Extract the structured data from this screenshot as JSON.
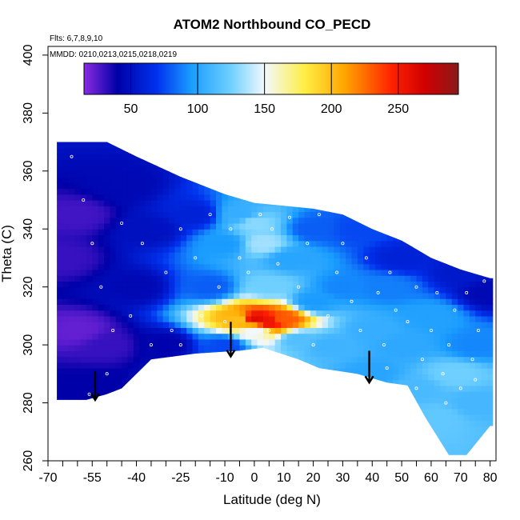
{
  "chart_data": {
    "type": "heatmap",
    "title": "ATOM2 Northbound CO_PECD",
    "flights_note": "Flts: 6,7,8,9,10",
    "dates_note": "MMDD: 0210,0213,0215,0218,0219",
    "xlabel": "Latitude (deg N)",
    "ylabel": "Theta (C)",
    "xlim": [
      -70,
      82
    ],
    "ylim": [
      260,
      403
    ],
    "x_ticks": [
      -70,
      -55,
      -40,
      -25,
      -10,
      0,
      10,
      20,
      30,
      40,
      50,
      60,
      70,
      80
    ],
    "x_tick_labels": [
      "-70",
      "-55",
      "-40",
      "-25",
      "-10",
      "0",
      "10",
      "20",
      "30",
      "40",
      "50",
      "60",
      "70",
      "80"
    ],
    "x_minor_ticks": [
      -65,
      -60,
      -50,
      -45,
      -35,
      -30,
      -20,
      -15,
      -5,
      5,
      15,
      25,
      35,
      45,
      55,
      65,
      75
    ],
    "y_ticks": [
      260,
      280,
      300,
      320,
      340,
      360,
      380,
      400
    ],
    "y_tick_labels": [
      "260",
      "280",
      "300",
      "320",
      "340",
      "360",
      "380",
      "400"
    ],
    "colorbar": {
      "range": [
        15,
        295
      ],
      "ticks": [
        50,
        100,
        150,
        200,
        250
      ],
      "tick_labels": [
        "50",
        "100",
        "150",
        "200",
        "250"
      ],
      "stops": [
        {
          "v": 15,
          "color": "#8a2be2"
        },
        {
          "v": 40,
          "color": "#0000a8"
        },
        {
          "v": 70,
          "color": "#0033ee"
        },
        {
          "v": 95,
          "color": "#1a9cff"
        },
        {
          "v": 125,
          "color": "#6fd0ff"
        },
        {
          "v": 150,
          "color": "#f2f8ff"
        },
        {
          "v": 180,
          "color": "#ffee44"
        },
        {
          "v": 210,
          "color": "#ffa500"
        },
        {
          "v": 245,
          "color": "#ff2200"
        },
        {
          "v": 270,
          "color": "#d00000"
        },
        {
          "v": 295,
          "color": "#8a1a1a"
        }
      ]
    },
    "domain_boundary": {
      "top": [
        [
          -57,
          370
        ],
        [
          -50,
          370
        ],
        [
          -40,
          365
        ],
        [
          -25,
          358
        ],
        [
          -10,
          352
        ],
        [
          0,
          349
        ],
        [
          10,
          348
        ],
        [
          20,
          347
        ],
        [
          30,
          345
        ],
        [
          40,
          340
        ],
        [
          50,
          336
        ],
        [
          60,
          330
        ],
        [
          70,
          326
        ],
        [
          80,
          323
        ]
      ],
      "bottom": [
        [
          -57,
          281
        ],
        [
          -50,
          283
        ],
        [
          -45,
          285
        ],
        [
          -35,
          295
        ],
        [
          -20,
          297
        ],
        [
          -5,
          298
        ],
        [
          3,
          299
        ],
        [
          15,
          295
        ],
        [
          22,
          292
        ],
        [
          35,
          290
        ],
        [
          45,
          287
        ],
        [
          52,
          286
        ],
        [
          58,
          275
        ],
        [
          66,
          262
        ],
        [
          72,
          262
        ],
        [
          80,
          272
        ]
      ],
      "left_x": -67,
      "right_x": 81
    },
    "field_description": "CO concentration (ppbv) interpolated over latitude and potential temperature",
    "field_points": [
      {
        "lat": -65,
        "theta": 330,
        "co": 30
      },
      {
        "lat": -60,
        "theta": 345,
        "co": 28
      },
      {
        "lat": -60,
        "theta": 305,
        "co": 22
      },
      {
        "lat": -50,
        "theta": 300,
        "co": 30
      },
      {
        "lat": -55,
        "theta": 285,
        "co": 40
      },
      {
        "lat": -45,
        "theta": 355,
        "co": 45
      },
      {
        "lat": -35,
        "theta": 340,
        "co": 50
      },
      {
        "lat": -40,
        "theta": 320,
        "co": 45
      },
      {
        "lat": -30,
        "theta": 300,
        "co": 42
      },
      {
        "lat": -20,
        "theta": 345,
        "co": 60
      },
      {
        "lat": -15,
        "theta": 320,
        "co": 80
      },
      {
        "lat": -10,
        "theta": 335,
        "co": 95
      },
      {
        "lat": -5,
        "theta": 345,
        "co": 105
      },
      {
        "lat": 0,
        "theta": 342,
        "co": 130
      },
      {
        "lat": 3,
        "theta": 335,
        "co": 135
      },
      {
        "lat": 5,
        "theta": 320,
        "co": 125
      },
      {
        "lat": -10,
        "theta": 300,
        "co": 75
      },
      {
        "lat": -5,
        "theta": 309,
        "co": 200
      },
      {
        "lat": 0,
        "theta": 309,
        "co": 262
      },
      {
        "lat": 5,
        "theta": 308,
        "co": 255
      },
      {
        "lat": 10,
        "theta": 309,
        "co": 230
      },
      {
        "lat": 0,
        "theta": 305,
        "co": 150
      },
      {
        "lat": 15,
        "theta": 302,
        "co": 115
      },
      {
        "lat": 12,
        "theta": 330,
        "co": 100
      },
      {
        "lat": 20,
        "theta": 340,
        "co": 80
      },
      {
        "lat": 20,
        "theta": 315,
        "co": 95
      },
      {
        "lat": 25,
        "theta": 300,
        "co": 108
      },
      {
        "lat": 30,
        "theta": 320,
        "co": 90
      },
      {
        "lat": 35,
        "theta": 340,
        "co": 75
      },
      {
        "lat": 40,
        "theta": 305,
        "co": 105
      },
      {
        "lat": 40,
        "theta": 290,
        "co": 100
      },
      {
        "lat": 45,
        "theta": 320,
        "co": 88
      },
      {
        "lat": 50,
        "theta": 330,
        "co": 60
      },
      {
        "lat": 50,
        "theta": 300,
        "co": 102
      },
      {
        "lat": 55,
        "theta": 285,
        "co": 112
      },
      {
        "lat": 60,
        "theta": 310,
        "co": 98
      },
      {
        "lat": 62,
        "theta": 275,
        "co": 120
      },
      {
        "lat": 68,
        "theta": 290,
        "co": 125
      },
      {
        "lat": 70,
        "theta": 325,
        "co": 55
      },
      {
        "lat": 75,
        "theta": 300,
        "co": 90
      },
      {
        "lat": 75,
        "theta": 280,
        "co": 110
      },
      {
        "lat": 80,
        "theta": 318,
        "co": 45
      }
    ],
    "observations": [
      [
        -62,
        365
      ],
      [
        -58,
        350
      ],
      [
        -55,
        335
      ],
      [
        -52,
        320
      ],
      [
        -48,
        305
      ],
      [
        -50,
        290
      ],
      [
        -45,
        342
      ],
      [
        -42,
        310
      ],
      [
        -38,
        335
      ],
      [
        -35,
        300
      ],
      [
        -30,
        325
      ],
      [
        -28,
        305
      ],
      [
        -25,
        340
      ],
      [
        -20,
        330
      ],
      [
        -18,
        310
      ],
      [
        -15,
        345
      ],
      [
        -12,
        320
      ],
      [
        -8,
        340
      ],
      [
        -5,
        330
      ],
      [
        -2,
        325
      ],
      [
        2,
        345
      ],
      [
        6,
        340
      ],
      [
        8,
        328
      ],
      [
        12,
        344
      ],
      [
        15,
        320
      ],
      [
        18,
        335
      ],
      [
        22,
        345
      ],
      [
        25,
        310
      ],
      [
        28,
        325
      ],
      [
        30,
        335
      ],
      [
        33,
        315
      ],
      [
        36,
        305
      ],
      [
        38,
        330
      ],
      [
        42,
        318
      ],
      [
        44,
        300
      ],
      [
        46,
        325
      ],
      [
        48,
        312
      ],
      [
        52,
        308
      ],
      [
        55,
        320
      ],
      [
        57,
        295
      ],
      [
        60,
        305
      ],
      [
        62,
        318
      ],
      [
        64,
        290
      ],
      [
        66,
        300
      ],
      [
        68,
        312
      ],
      [
        70,
        285
      ],
      [
        72,
        318
      ],
      [
        74,
        295
      ],
      [
        76,
        305
      ],
      [
        78,
        322
      ],
      [
        -56,
        283
      ],
      [
        -40,
        286
      ],
      [
        -25,
        300
      ],
      [
        -10,
        308
      ],
      [
        5,
        305
      ],
      [
        20,
        300
      ],
      [
        45,
        292
      ],
      [
        55,
        285
      ],
      [
        65,
        280
      ],
      [
        75,
        288
      ]
    ],
    "arrows": [
      {
        "lat": -54,
        "theta": 286,
        "theta_tip": 281
      },
      {
        "lat": -8,
        "theta": 303,
        "theta_tip": 296
      },
      {
        "lat": 39,
        "theta": 293,
        "theta_tip": 287
      }
    ]
  }
}
